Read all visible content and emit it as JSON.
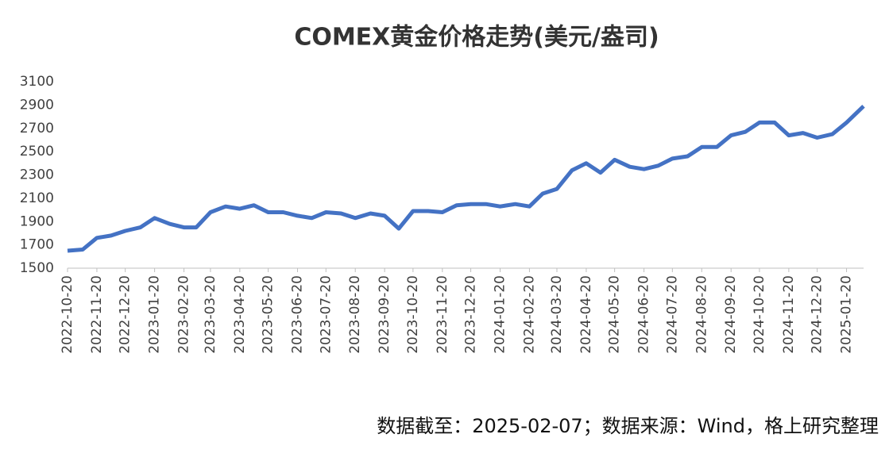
{
  "chart_data": {
    "type": "line",
    "title": "COMEX黄金价格走势(美元/盎司)",
    "note": "数据截至：2025-02-07；数据来源：Wind，格上研究整理",
    "x": [
      "2022-10-20",
      "2022-11-05",
      "2022-11-20",
      "2022-12-05",
      "2022-12-20",
      "2023-01-05",
      "2023-01-20",
      "2023-02-05",
      "2023-02-20",
      "2023-03-05",
      "2023-03-20",
      "2023-04-05",
      "2023-04-20",
      "2023-05-05",
      "2023-05-20",
      "2023-06-05",
      "2023-06-20",
      "2023-07-05",
      "2023-07-20",
      "2023-08-05",
      "2023-08-20",
      "2023-09-05",
      "2023-09-20",
      "2023-10-05",
      "2023-10-20",
      "2023-11-05",
      "2023-11-20",
      "2023-12-05",
      "2023-12-20",
      "2024-01-05",
      "2024-01-20",
      "2024-02-05",
      "2024-02-20",
      "2024-03-05",
      "2024-03-20",
      "2024-04-05",
      "2024-04-20",
      "2024-05-05",
      "2024-05-20",
      "2024-06-05",
      "2024-06-20",
      "2024-07-05",
      "2024-07-20",
      "2024-08-05",
      "2024-08-20",
      "2024-09-05",
      "2024-09-20",
      "2024-10-05",
      "2024-10-20",
      "2024-11-05",
      "2024-11-20",
      "2024-12-05",
      "2024-12-20",
      "2025-01-05",
      "2025-01-20",
      "2025-02-07"
    ],
    "series": [
      {
        "name": "COMEX黄金",
        "color": "#4472c4",
        "values": [
          1650,
          1660,
          1760,
          1780,
          1820,
          1850,
          1930,
          1880,
          1850,
          1850,
          1980,
          2030,
          2010,
          2040,
          1980,
          1980,
          1950,
          1930,
          1980,
          1970,
          1930,
          1970,
          1950,
          1840,
          1990,
          1990,
          1980,
          2040,
          2050,
          2050,
          2030,
          2050,
          2030,
          2140,
          2180,
          2340,
          2400,
          2320,
          2430,
          2370,
          2350,
          2380,
          2440,
          2460,
          2540,
          2540,
          2640,
          2670,
          2750,
          2750,
          2640,
          2660,
          2620,
          2650,
          2750,
          2890
        ]
      }
    ],
    "xlim": [
      "2022-10-20",
      "2025-02-07"
    ],
    "xticks": [
      "2022-10-20",
      "2022-11-20",
      "2022-12-20",
      "2023-01-20",
      "2023-02-20",
      "2023-03-20",
      "2023-04-20",
      "2023-05-20",
      "2023-06-20",
      "2023-07-20",
      "2023-08-20",
      "2023-09-20",
      "2023-10-20",
      "2023-11-20",
      "2023-12-20",
      "2024-01-20",
      "2024-02-20",
      "2024-03-20",
      "2024-04-20",
      "2024-05-20",
      "2024-06-20",
      "2024-07-20",
      "2024-08-20",
      "2024-09-20",
      "2024-10-20",
      "2024-11-20",
      "2024-12-20",
      "2025-01-20"
    ],
    "ylim": [
      1500,
      3100
    ],
    "yticks": [
      1500,
      1700,
      1900,
      2100,
      2300,
      2500,
      2700,
      2900,
      3100
    ]
  }
}
